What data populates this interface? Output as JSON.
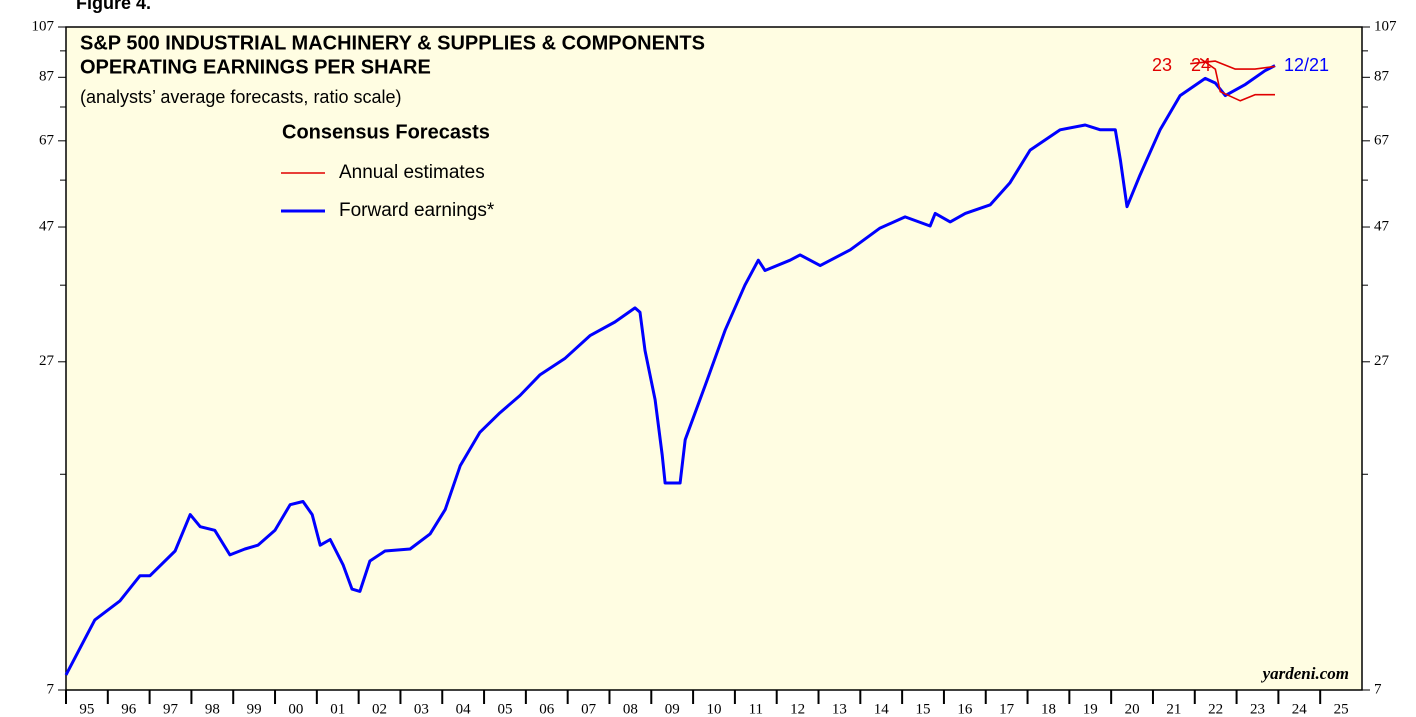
{
  "chart_data": {
    "type": "line",
    "figure_label": "Figure 4.",
    "title": [
      "S&P 500 INDUSTRIAL MACHINERY & SUPPLIES & COMPONENTS",
      "OPERATING EARNINGS PER SHARE"
    ],
    "subtitle": "(analysts’ average forecasts, ratio scale)",
    "legend_title": "Consensus Forecasts",
    "legend_annual": {
      "label": "Annual estimates",
      "color": "#e00000"
    },
    "annotation": "12/21",
    "source": "yardeni.com",
    "yscale": "log",
    "ylim": [
      7,
      107
    ],
    "yticks": [
      7,
      27,
      47,
      67,
      87,
      107
    ],
    "yminor": [
      17,
      37,
      57,
      77,
      97
    ],
    "xlim": [
      1995,
      2026
    ],
    "xticks": [
      {
        "value": 1995.5,
        "label": "95"
      },
      {
        "value": 1996.5,
        "label": "96"
      },
      {
        "value": 1997.5,
        "label": "97"
      },
      {
        "value": 1998.5,
        "label": "98"
      },
      {
        "value": 1999.5,
        "label": "99"
      },
      {
        "value": 2000.5,
        "label": "00"
      },
      {
        "value": 2001.5,
        "label": "01"
      },
      {
        "value": 2002.5,
        "label": "02"
      },
      {
        "value": 2003.5,
        "label": "03"
      },
      {
        "value": 2004.5,
        "label": "04"
      },
      {
        "value": 2005.5,
        "label": "05"
      },
      {
        "value": 2006.5,
        "label": "06"
      },
      {
        "value": 2007.5,
        "label": "07"
      },
      {
        "value": 2008.5,
        "label": "08"
      },
      {
        "value": 2009.5,
        "label": "09"
      },
      {
        "value": 2010.5,
        "label": "10"
      },
      {
        "value": 2011.5,
        "label": "11"
      },
      {
        "value": 2012.5,
        "label": "12"
      },
      {
        "value": 2013.5,
        "label": "13"
      },
      {
        "value": 2014.5,
        "label": "14"
      },
      {
        "value": 2015.5,
        "label": "15"
      },
      {
        "value": 2016.5,
        "label": "16"
      },
      {
        "value": 2017.5,
        "label": "17"
      },
      {
        "value": 2018.5,
        "label": "18"
      },
      {
        "value": 2019.5,
        "label": "19"
      },
      {
        "value": 2020.5,
        "label": "20"
      },
      {
        "value": 2021.5,
        "label": "21"
      },
      {
        "value": 2022.5,
        "label": "22"
      },
      {
        "value": 2023.5,
        "label": "23"
      },
      {
        "value": 2024.5,
        "label": "24"
      },
      {
        "value": 2025.5,
        "label": "25"
      }
    ],
    "series": [
      {
        "name": "Forward earnings*",
        "color": "#0000ff",
        "x": [
          1995.0,
          1995.69,
          1996.29,
          1996.77,
          1997.01,
          1997.61,
          1997.97,
          1998.21,
          1998.56,
          1998.92,
          1999.28,
          1999.59,
          2000.0,
          2000.36,
          2000.67,
          2000.89,
          2001.08,
          2001.32,
          2001.63,
          2001.84,
          2002.03,
          2002.27,
          2002.63,
          2003.23,
          2003.71,
          2004.07,
          2004.43,
          2004.9,
          2005.38,
          2005.86,
          2006.34,
          2006.94,
          2007.54,
          2008.13,
          2008.61,
          2008.73,
          2008.85,
          2009.09,
          2009.26,
          2009.33,
          2009.69,
          2009.81,
          2010.29,
          2010.77,
          2011.24,
          2011.56,
          2011.72,
          2012.32,
          2012.56,
          2013.04,
          2013.76,
          2014.47,
          2015.07,
          2015.67,
          2015.79,
          2016.15,
          2016.51,
          2017.11,
          2017.58,
          2018.06,
          2018.78,
          2019.38,
          2019.74,
          2020.1,
          2020.22,
          2020.38,
          2020.69,
          2021.17,
          2021.65,
          2022.25,
          2022.49,
          2022.73,
          2023.21,
          2023.68,
          2023.92
        ],
        "values": [
          7.45,
          9.34,
          10.1,
          11.2,
          11.2,
          12.4,
          14.4,
          13.7,
          13.5,
          12.2,
          12.5,
          12.7,
          13.5,
          15.0,
          15.2,
          14.4,
          12.7,
          13.0,
          11.7,
          10.6,
          10.5,
          11.9,
          12.4,
          12.5,
          13.3,
          14.7,
          17.6,
          20.2,
          21.9,
          23.5,
          25.6,
          27.4,
          30.1,
          31.8,
          33.7,
          33.1,
          28.3,
          23.1,
          18.4,
          16.4,
          16.4,
          19.6,
          24.5,
          30.8,
          37.0,
          41.0,
          39.3,
          41.0,
          41.9,
          40.1,
          42.8,
          46.8,
          49.0,
          47.2,
          49.7,
          48.0,
          49.7,
          51.5,
          56.4,
          64.5,
          70.1,
          71.5,
          70.1,
          70.1,
          61.9,
          51.1,
          58.2,
          70.1,
          80.7,
          86.6,
          85.0,
          80.7,
          84.5,
          89.4,
          91.3
        ]
      },
      {
        "name": "23",
        "color": "#e00000",
        "x": [
          2021.89,
          2022.49,
          2022.97,
          2023.44,
          2023.92
        ],
        "values": [
          92,
          93,
          90,
          90,
          91
        ]
      },
      {
        "name": "24",
        "color": "#e00000",
        "x": [
          2022.13,
          2022.49,
          2022.61,
          2023.09,
          2023.44,
          2023.92
        ],
        "values": [
          94,
          90,
          82,
          79,
          81,
          81
        ]
      }
    ]
  }
}
